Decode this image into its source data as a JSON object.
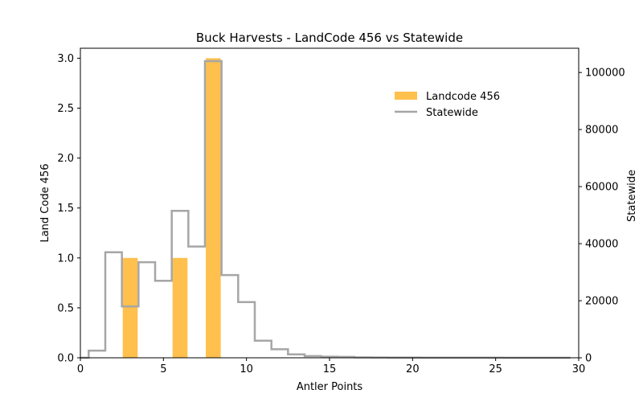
{
  "chart_data": {
    "type": "bar",
    "title": "Buck Harvests - LandCode 456 vs Statewide",
    "xlabel": "Antler Points",
    "ylabel_left": "Land Code 456",
    "ylabel_right": "Statewide",
    "xlim": [
      0,
      30
    ],
    "ylim_left": [
      0,
      3.1
    ],
    "ylim_right": [
      0,
      108500
    ],
    "xticks": [
      0,
      5,
      10,
      15,
      20,
      25,
      30
    ],
    "yticks_left": [
      "0.0",
      "0.5",
      "1.0",
      "1.5",
      "2.0",
      "2.5",
      "3.0"
    ],
    "yticks_right": [
      0,
      20000,
      40000,
      60000,
      80000,
      100000
    ],
    "grid": false,
    "legend_position": "upper-right",
    "series": [
      {
        "name": "Landcode 456",
        "kind": "bar",
        "axis": "left",
        "color": "#FFC04D",
        "x": [
          3,
          6,
          8
        ],
        "values": [
          1,
          1,
          3
        ]
      },
      {
        "name": "Statewide",
        "kind": "step",
        "axis": "right",
        "color": "#A6A6A6",
        "x": [
          0,
          1,
          2,
          3,
          4,
          5,
          6,
          7,
          8,
          9,
          10,
          11,
          12,
          13,
          14,
          15,
          16,
          17,
          18,
          19,
          20,
          21,
          22,
          23,
          24,
          25,
          26,
          27,
          28,
          29
        ],
        "values": [
          0,
          2500,
          37000,
          18000,
          33500,
          27000,
          51500,
          39000,
          104000,
          29000,
          19500,
          6000,
          3000,
          1200,
          600,
          400,
          300,
          150,
          100,
          80,
          60,
          50,
          40,
          30,
          20,
          20,
          10,
          10,
          10,
          10
        ]
      }
    ]
  }
}
